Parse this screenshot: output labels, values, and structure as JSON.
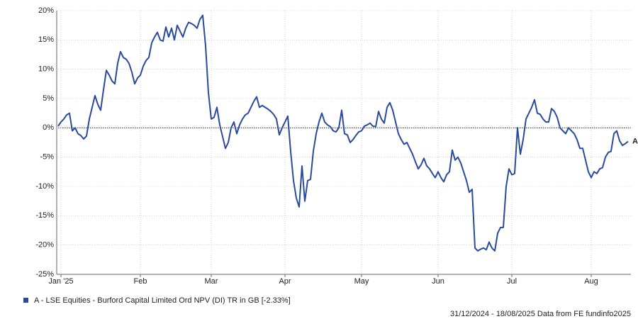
{
  "chart_data": {
    "type": "line",
    "categories": [
      null,
      "Jan '25",
      null,
      null,
      null,
      null,
      null,
      null,
      null,
      null,
      null,
      null,
      null,
      null,
      null,
      null,
      null,
      null,
      null,
      null,
      null,
      null,
      null,
      null,
      null,
      null,
      null,
      null,
      null,
      "Feb",
      null,
      null,
      null,
      null,
      null,
      null,
      null,
      null,
      null,
      null,
      null,
      null,
      null,
      null,
      null,
      null,
      null,
      null,
      null,
      null,
      null,
      null,
      null,
      null,
      "Mar",
      null,
      null,
      null,
      null,
      null,
      null,
      null,
      null,
      null,
      null,
      null,
      null,
      null,
      null,
      null,
      null,
      null,
      null,
      null,
      null,
      null,
      null,
      null,
      null,
      null,
      "Apr",
      null,
      null,
      null,
      null,
      null,
      null,
      null,
      null,
      null,
      null,
      null,
      null,
      null,
      null,
      null,
      null,
      null,
      null,
      null,
      null,
      null,
      null,
      null,
      null,
      null,
      null,
      "May",
      null,
      null,
      null,
      null,
      null,
      null,
      null,
      null,
      null,
      null,
      null,
      null,
      null,
      null,
      null,
      null,
      null,
      null,
      null,
      null,
      null,
      null,
      null,
      null,
      null,
      null,
      "Jun",
      null,
      null,
      null,
      null,
      null,
      null,
      null,
      null,
      null,
      null,
      null,
      null,
      null,
      null,
      null,
      null,
      null,
      null,
      null,
      null,
      null,
      null,
      null,
      null,
      null,
      "Jul",
      null,
      null,
      null,
      null,
      null,
      null,
      null,
      null,
      null,
      null,
      null,
      null,
      null,
      null,
      null,
      null,
      null,
      null,
      null,
      null,
      null,
      null,
      null,
      null,
      null,
      null,
      null,
      "Aug",
      null,
      null,
      null,
      null,
      null,
      null,
      null,
      null,
      null,
      null,
      null,
      null,
      null
    ],
    "series": [
      {
        "name": "A - LSE Equities - Burford Capital Limited Ord NPV (DI) TR in GB [-2.33%]",
        "end_label": "A",
        "color": "#2a4a9c",
        "values": [
          0.3,
          1,
          1.5,
          2.2,
          2.5,
          -0.5,
          0,
          -1,
          -1.3,
          -1.9,
          -1.4,
          1.5,
          3.5,
          5.5,
          4,
          3,
          6.5,
          9.8,
          9,
          8,
          7.5,
          11,
          13,
          12,
          11.7,
          11,
          9.5,
          7.5,
          8.5,
          9,
          10.5,
          11.5,
          12,
          14.5,
          15.5,
          16.3,
          15,
          14.8,
          17.2,
          15.5,
          17,
          15,
          17.5,
          16.5,
          15.5,
          17,
          18,
          17.8,
          17.5,
          17,
          18.5,
          19.2,
          14,
          6,
          1.5,
          1.8,
          3.5,
          0.5,
          -1.5,
          -3.5,
          -2.5,
          0,
          1,
          -1,
          0.5,
          1.5,
          2.2,
          2.5,
          3.5,
          4.5,
          5.3,
          3.5,
          3.8,
          3.5,
          3.2,
          2.8,
          2.3,
          1.5,
          -1.2,
          0,
          1,
          2,
          -4,
          -9,
          -12,
          -13.5,
          -6.5,
          -12.5,
          -9,
          -8.8,
          -4,
          -1,
          1,
          2.5,
          1,
          0.5,
          0.2,
          -0.5,
          -0.7,
          0,
          3,
          -1,
          -1.2,
          -2.5,
          -2,
          -1.3,
          -0.7,
          -0.5,
          0.3,
          0.5,
          0.8,
          0.3,
          0.2,
          2.8,
          1.5,
          0.8,
          3.5,
          4.3,
          3,
          1,
          -1,
          -2,
          -2.8,
          -2.5,
          -3.5,
          -4.5,
          -5.8,
          -7,
          -6.3,
          -5.2,
          -6.5,
          -7,
          -7.8,
          -8.5,
          -7.5,
          -8.5,
          -9.2,
          -8,
          -7.5,
          -3.8,
          -5.5,
          -5,
          -6,
          -7.5,
          -9,
          -11,
          -10.5,
          -20.5,
          -21,
          -20.7,
          -20.5,
          -20.8,
          -19.5,
          -20.5,
          -21,
          -18,
          -17,
          -17,
          -10,
          -7,
          -8,
          -7.8,
          0,
          -4.5,
          -2,
          1.5,
          2.5,
          3.5,
          4.8,
          2.5,
          2.3,
          1.5,
          1,
          1,
          3.3,
          2.8,
          1.8,
          0,
          -0.5,
          -1,
          0,
          -0.5,
          -1,
          -2,
          -3.5,
          -3.5,
          -5.5,
          -7.5,
          -8.5,
          -7.5,
          -7.8,
          -7,
          -6.8,
          -5,
          -4.2,
          -4,
          -1,
          -0.5,
          -2.2,
          -3,
          -2.7,
          -2.33
        ]
      }
    ],
    "ylim": [
      -25,
      20
    ],
    "yticks": [
      {
        "value": -25,
        "label": "-25%"
      },
      {
        "value": -20,
        "label": "-20%"
      },
      {
        "value": -15,
        "label": "-15%"
      },
      {
        "value": -10,
        "label": "-10%"
      },
      {
        "value": -5,
        "label": "-5%"
      },
      {
        "value": 0,
        "label": "0%"
      },
      {
        "value": 5,
        "label": "5%"
      },
      {
        "value": 10,
        "label": "10%"
      },
      {
        "value": 15,
        "label": "15%"
      },
      {
        "value": 20,
        "label": "20%"
      }
    ],
    "grid": true,
    "footer": "31/12/2024 - 18/08/2025 Data from FE fundinfo2025"
  }
}
